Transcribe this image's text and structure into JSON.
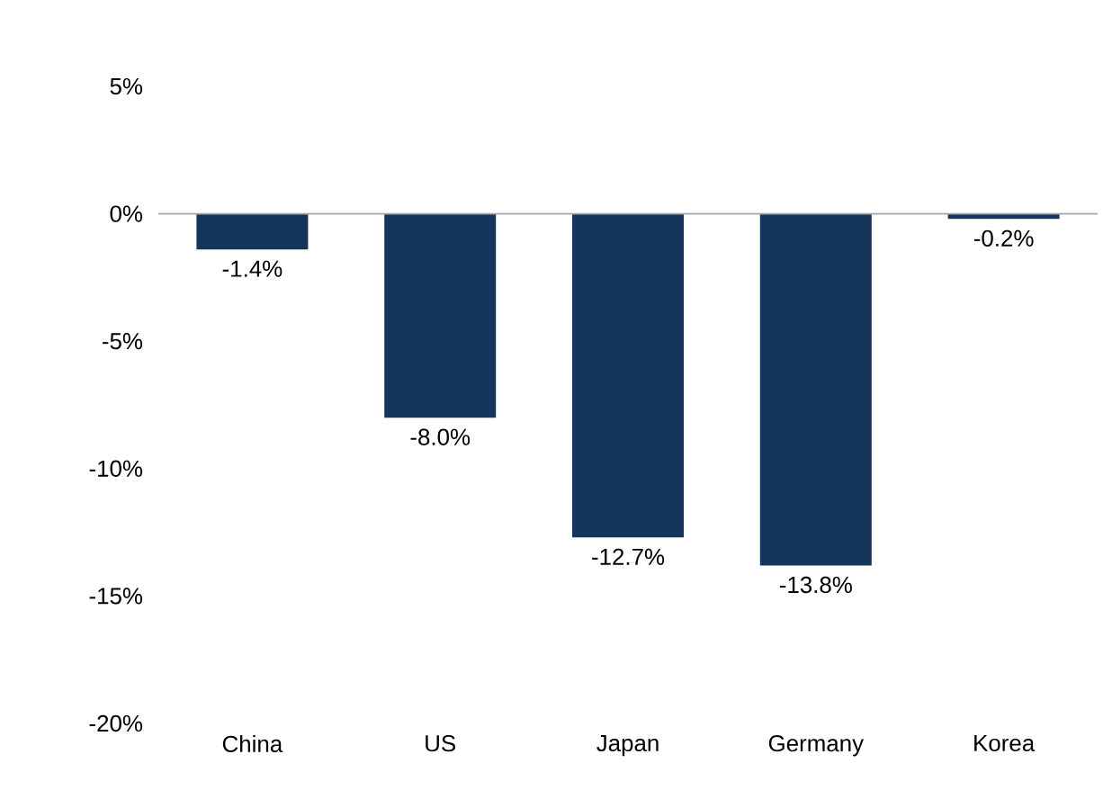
{
  "chart_data": {
    "type": "bar",
    "categories": [
      "China",
      "US",
      "Japan",
      "Germany",
      "Korea"
    ],
    "values": [
      -1.4,
      -8.0,
      -12.7,
      -13.8,
      -0.2
    ],
    "value_labels": [
      "-1.4%",
      "-8.0%",
      "-12.7%",
      "-13.8%",
      "-0.2%"
    ],
    "color": "#14365d",
    "ylim": [
      -20,
      5
    ],
    "yticks": [
      {
        "value": 5,
        "label": "5%"
      },
      {
        "value": 0,
        "label": "0%"
      },
      {
        "value": -5,
        "label": "-5%"
      },
      {
        "value": -10,
        "label": "-10%"
      },
      {
        "value": -15,
        "label": "-15%"
      },
      {
        "value": -20,
        "label": "-20%"
      }
    ],
    "ref_lines": [
      {
        "axis": "y",
        "value": 0,
        "color": "#a6a6a6"
      }
    ]
  }
}
